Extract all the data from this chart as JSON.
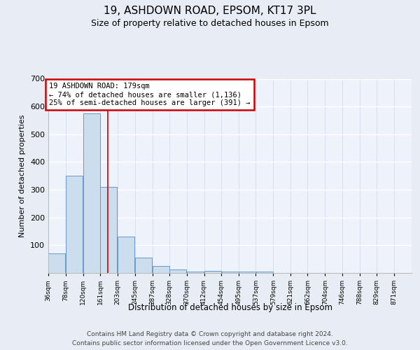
{
  "title1": "19, ASHDOWN ROAD, EPSOM, KT17 3PL",
  "title2": "Size of property relative to detached houses in Epsom",
  "xlabel": "Distribution of detached houses by size in Epsom",
  "ylabel": "Number of detached properties",
  "bin_labels": [
    "36sqm",
    "78sqm",
    "120sqm",
    "161sqm",
    "203sqm",
    "245sqm",
    "287sqm",
    "328sqm",
    "370sqm",
    "412sqm",
    "454sqm",
    "495sqm",
    "537sqm",
    "579sqm",
    "621sqm",
    "662sqm",
    "704sqm",
    "746sqm",
    "788sqm",
    "829sqm",
    "871sqm"
  ],
  "bin_edges": [
    36,
    78,
    120,
    161,
    203,
    245,
    287,
    328,
    370,
    412,
    454,
    495,
    537,
    579,
    621,
    662,
    704,
    746,
    788,
    829,
    871
  ],
  "bar_heights": [
    70,
    350,
    575,
    310,
    130,
    55,
    25,
    12,
    5,
    8,
    5,
    5,
    5,
    0,
    0,
    0,
    0,
    0,
    0,
    0
  ],
  "bar_color": "#ccdded",
  "bar_edge_color": "#6699cc",
  "red_line_x": 179,
  "annotation_text": "19 ASHDOWN ROAD: 179sqm\n← 74% of detached houses are smaller (1,136)\n25% of semi-detached houses are larger (391) →",
  "annotation_box_color": "white",
  "annotation_box_edge": "#cc0000",
  "ylim": [
    0,
    700
  ],
  "yticks": [
    0,
    100,
    200,
    300,
    400,
    500,
    600,
    700
  ],
  "footer1": "Contains HM Land Registry data © Crown copyright and database right 2024.",
  "footer2": "Contains public sector information licensed under the Open Government Licence v3.0.",
  "bg_color": "#e8ecf4",
  "plot_bg_color": "#eef2fa"
}
